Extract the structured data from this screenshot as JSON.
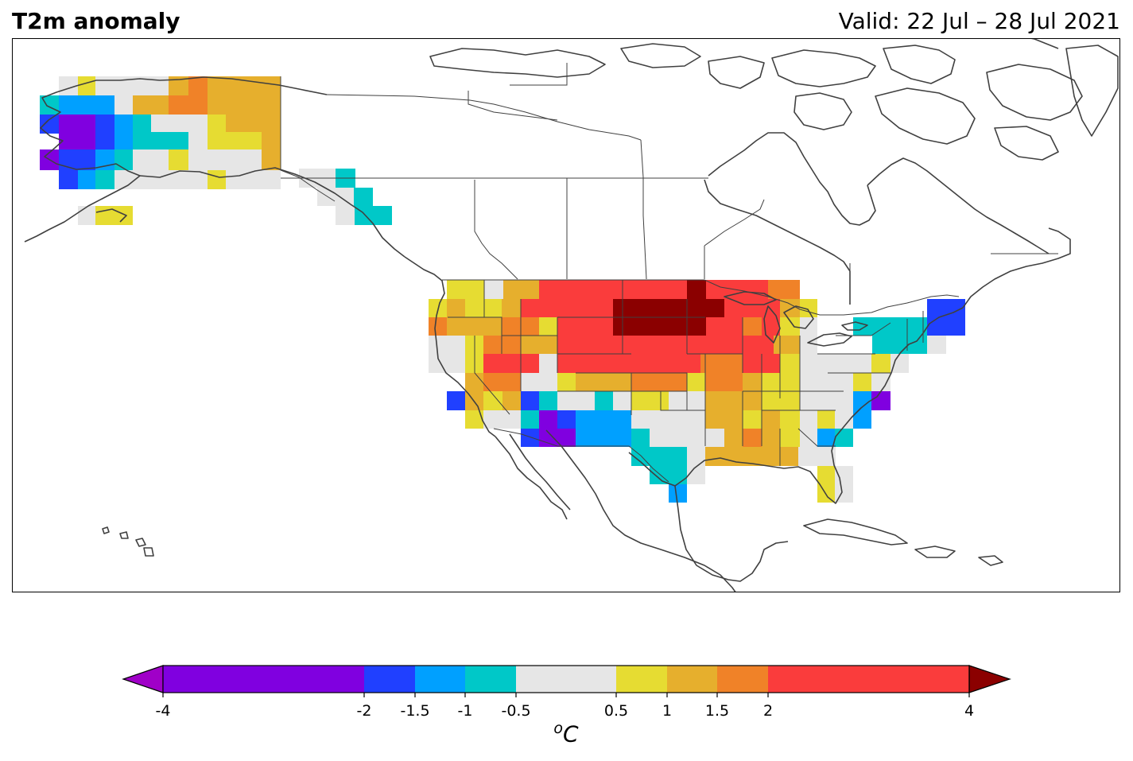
{
  "header": {
    "title": "T2m anomaly",
    "valid": "Valid: 22 Jul – 28 Jul 2021"
  },
  "colorbar": {
    "unit_base": "C",
    "unit_sup": "o",
    "ticks": [
      "-4",
      "-2",
      "-1.5",
      "-1",
      "-0.5",
      "0.5",
      "1",
      "1.5",
      "2",
      "4"
    ],
    "bins": [
      {
        "from": -4,
        "to": -2,
        "color": "#8000e0"
      },
      {
        "from": -2,
        "to": -1.5,
        "color": "#2040ff"
      },
      {
        "from": -1.5,
        "to": -1,
        "color": "#00a0ff"
      },
      {
        "from": -1,
        "to": -0.5,
        "color": "#00c8c8"
      },
      {
        "from": -0.5,
        "to": 0.5,
        "color": "#e6e6e6"
      },
      {
        "from": 0.5,
        "to": 1,
        "color": "#e6dc32"
      },
      {
        "from": 1,
        "to": 1.5,
        "color": "#e6af2d"
      },
      {
        "from": 1.5,
        "to": 2,
        "color": "#f08228"
      },
      {
        "from": 2,
        "to": 4,
        "color": "#fa3c3c"
      }
    ],
    "under_color": "#a000c8",
    "over_color": "#8b0000"
  },
  "colors": {
    "coast": "#404040",
    "border": "#404040"
  }
}
